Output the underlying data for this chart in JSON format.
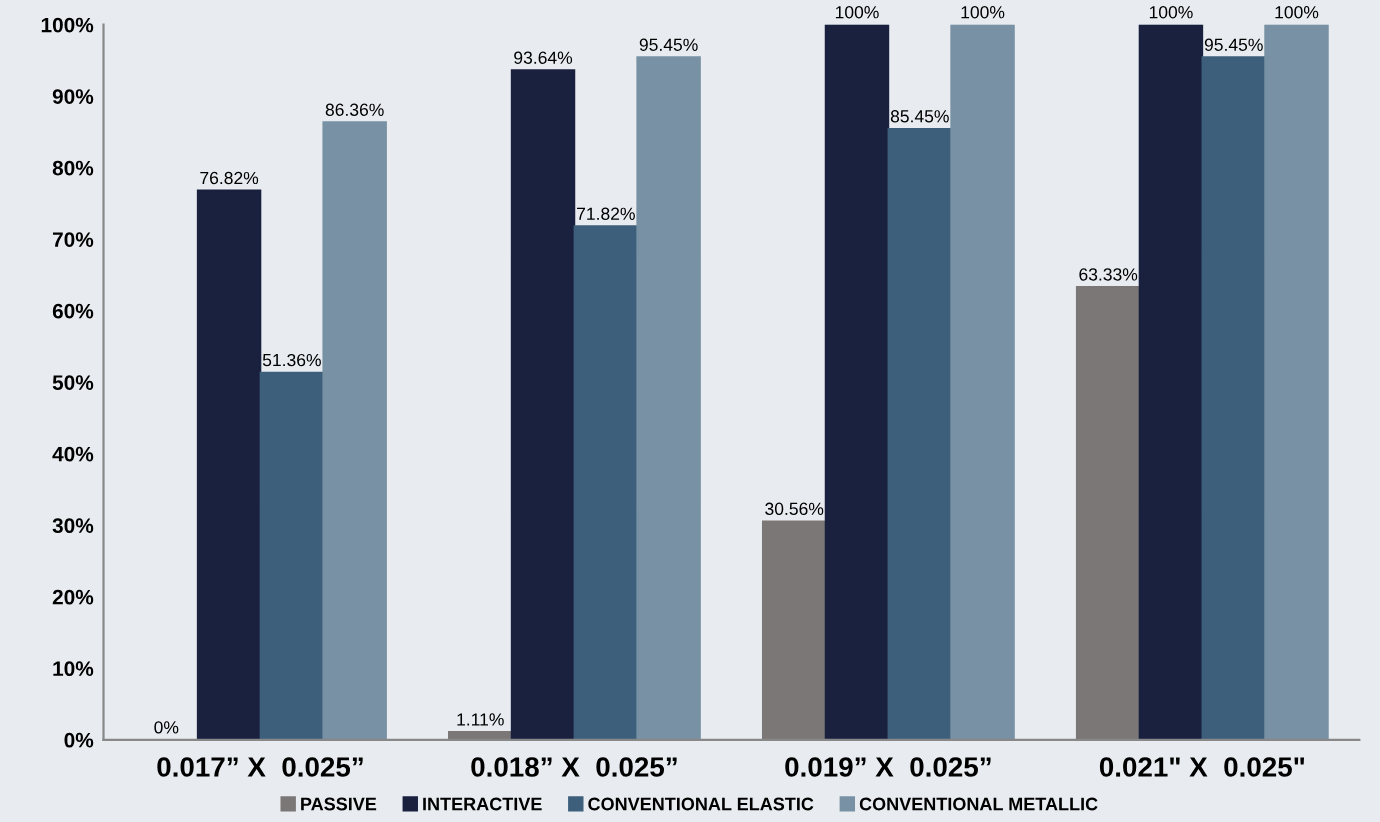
{
  "chart_data": {
    "type": "bar",
    "categories": [
      "0.017” X  0.025”",
      "0.018” X  0.025”",
      "0.019” X  0.025”",
      "0.021\" X  0.025\""
    ],
    "series": [
      {
        "name": "PASSIVE",
        "color": "#7b7777",
        "values": [
          0,
          1.11,
          30.56,
          63.33
        ],
        "value_labels": [
          "0%",
          "1.11%",
          "30.56%",
          "63.33%"
        ]
      },
      {
        "name": "INTERACTIVE",
        "color": "#19213f",
        "values": [
          76.82,
          93.64,
          100,
          100
        ],
        "value_labels": [
          "76.82%",
          "93.64%",
          "100%",
          "100%"
        ]
      },
      {
        "name": "CONVENTIONAL ELASTIC",
        "color": "#3d5f7b",
        "values": [
          51.36,
          71.82,
          85.45,
          95.45
        ],
        "value_labels": [
          "51.36%",
          "71.82%",
          "85.45%",
          "95.45%"
        ]
      },
      {
        "name": "CONVENTIONAL METALLIC",
        "color": "#7891a4",
        "values": [
          86.36,
          95.45,
          100,
          100
        ],
        "value_labels": [
          "86.36%",
          "95.45%",
          "100%",
          "100%"
        ]
      }
    ],
    "ylim": [
      0,
      100
    ],
    "yticks": [
      {
        "value": 0,
        "label": "0%"
      },
      {
        "value": 10,
        "label": "10%"
      },
      {
        "value": 20,
        "label": "20%"
      },
      {
        "value": 30,
        "label": "30%"
      },
      {
        "value": 40,
        "label": "40%"
      },
      {
        "value": 50,
        "label": "50%"
      },
      {
        "value": 60,
        "label": "60%"
      },
      {
        "value": 70,
        "label": "70%"
      },
      {
        "value": 80,
        "label": "80%"
      },
      {
        "value": 90,
        "label": "90%"
      },
      {
        "value": 100,
        "label": "100%"
      }
    ],
    "grid": false,
    "legend": "bottom"
  }
}
